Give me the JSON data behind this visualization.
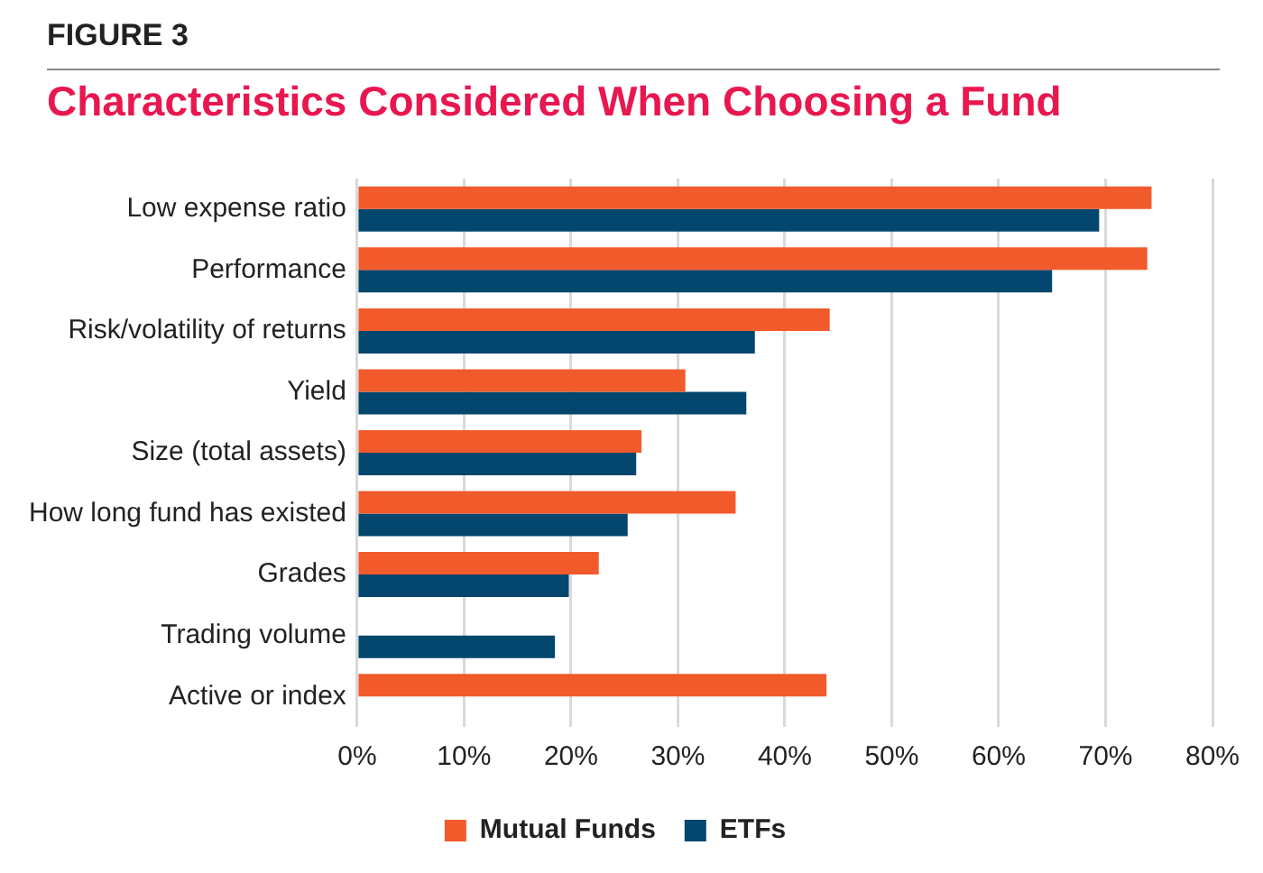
{
  "chart_data": {
    "type": "bar",
    "orientation": "horizontal",
    "title": "Characteristics Considered When Choosing a Fund",
    "annotations": [
      "FIGURE 3"
    ],
    "categories": [
      "Low expense ratio",
      "Performance",
      "Risk/volatility of returns",
      "Yield",
      "Size (total assets)",
      "How long fund has existed",
      "Grades",
      "Trading volume",
      "Active or index"
    ],
    "series": [
      {
        "name": "Mutual Funds",
        "color": "#f15a2b",
        "values": [
          74.3,
          73.9,
          44.2,
          30.7,
          26.6,
          35.4,
          22.6,
          null,
          43.9
        ]
      },
      {
        "name": "ETFs",
        "color": "#03466e",
        "values": [
          69.4,
          65.0,
          37.2,
          36.4,
          26.1,
          25.3,
          19.8,
          18.5,
          null
        ]
      }
    ],
    "xlim": [
      0,
      80
    ],
    "xticks": [
      {
        "value": 0,
        "label": "0%"
      },
      {
        "value": 10,
        "label": "10%"
      },
      {
        "value": 20,
        "label": "20%"
      },
      {
        "value": 30,
        "label": "30%"
      },
      {
        "value": 40,
        "label": "40%"
      },
      {
        "value": 50,
        "label": "50%"
      },
      {
        "value": 60,
        "label": "60%"
      },
      {
        "value": 70,
        "label": "70%"
      },
      {
        "value": 80,
        "label": "80%"
      }
    ],
    "grid": "x",
    "legend": "bottom"
  }
}
